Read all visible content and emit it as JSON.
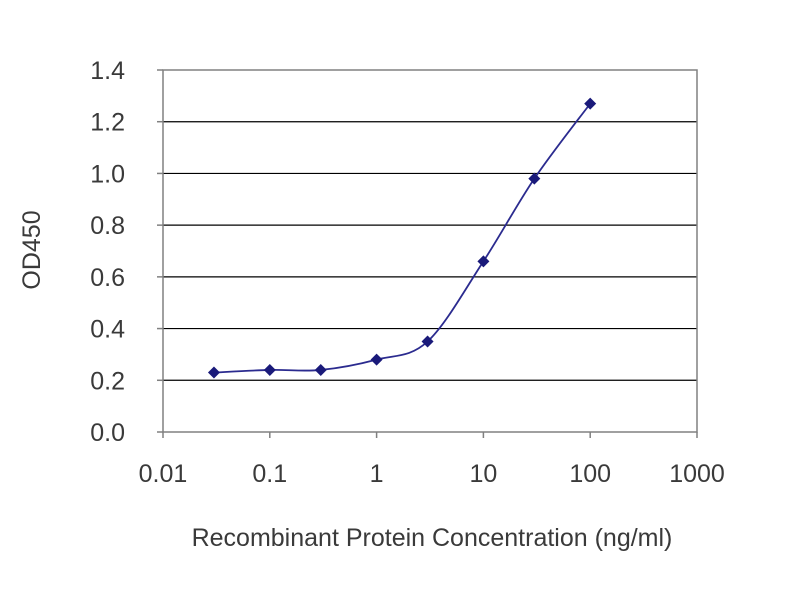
{
  "chart_data": {
    "type": "line",
    "title": "",
    "xlabel": "Recombinant Protein Concentration (ng/ml)",
    "ylabel": "OD450",
    "x_scale": "log",
    "xlim": [
      0.01,
      1000
    ],
    "ylim": [
      0.0,
      1.4
    ],
    "x_ticks": [
      "0.01",
      "0.1",
      "1",
      "10",
      "100",
      "1000"
    ],
    "y_ticks": [
      "0.0",
      "0.2",
      "0.4",
      "0.6",
      "0.8",
      "1.0",
      "1.2",
      "1.4"
    ],
    "grid": "horizontal",
    "legend": "none",
    "series": [
      {
        "x": [
          0.03,
          0.1,
          0.3,
          1,
          3,
          10,
          30,
          100
        ],
        "y": [
          0.23,
          0.24,
          0.24,
          0.28,
          0.35,
          0.66,
          0.98,
          1.27
        ],
        "color": "#2b2b8f"
      }
    ],
    "colors": {
      "line": "#2b2b8f",
      "marker": "#1a1a7a",
      "grid": "#000000",
      "frame": "#808080"
    }
  }
}
